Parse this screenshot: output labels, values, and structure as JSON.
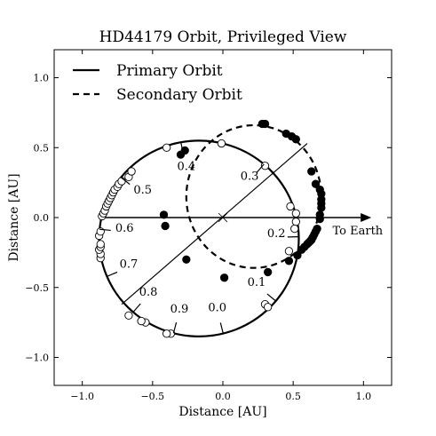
{
  "chart_data": {
    "type": "scatter",
    "title": "HD44179 Orbit, Privileged View",
    "xlabel": "Distance [AU]",
    "ylabel": "Distance [AU]",
    "xlim": [
      -1.2,
      1.2
    ],
    "ylim": [
      -1.2,
      1.2
    ],
    "xticks": [
      -1.0,
      -0.5,
      0.0,
      0.5,
      1.0
    ],
    "yticks": [
      -1.0,
      -0.5,
      0.0,
      0.5,
      1.0
    ],
    "xtick_labels": [
      "−1.0",
      "−0.5",
      "0.0",
      "0.5",
      "1.0"
    ],
    "ytick_labels": [
      "−1.0",
      "−0.5",
      "0.0",
      "0.5",
      "1.0"
    ],
    "grid": false,
    "legend_position": "top-left",
    "legend": [
      {
        "label": "Primary Orbit",
        "style": "solid"
      },
      {
        "label": "Secondary Orbit",
        "style": "dashed"
      }
    ],
    "arrow_label": "To Earth",
    "primary_orbit": {
      "style": "solid",
      "center": [
        -0.17,
        -0.15
      ],
      "radius_x": 0.71,
      "radius_y": 0.7,
      "marker": "open-circle",
      "points": [
        [
          0.48,
          0.08
        ],
        [
          0.52,
          0.03
        ],
        [
          0.52,
          -0.03
        ],
        [
          0.51,
          -0.08
        ],
        [
          0.47,
          -0.24
        ],
        [
          0.3,
          -0.62
        ],
        [
          0.32,
          -0.64
        ],
        [
          -0.37,
          -0.83
        ],
        [
          -0.4,
          -0.83
        ],
        [
          -0.55,
          -0.75
        ],
        [
          -0.58,
          -0.74
        ],
        [
          -0.67,
          -0.7
        ],
        [
          -0.87,
          -0.29
        ],
        [
          -0.87,
          -0.26
        ],
        [
          -0.88,
          -0.23
        ],
        [
          -0.87,
          -0.21
        ],
        [
          -0.87,
          -0.19
        ],
        [
          -0.88,
          -0.13
        ],
        [
          -0.87,
          -0.1
        ],
        [
          -0.86,
          0.01
        ],
        [
          -0.85,
          0.03
        ],
        [
          -0.84,
          0.05
        ],
        [
          -0.83,
          0.08
        ],
        [
          -0.82,
          0.1
        ],
        [
          -0.81,
          0.12
        ],
        [
          -0.8,
          0.14
        ],
        [
          -0.79,
          0.16
        ],
        [
          -0.78,
          0.18
        ],
        [
          -0.77,
          0.2
        ],
        [
          -0.75,
          0.22
        ],
        [
          -0.74,
          0.24
        ],
        [
          -0.72,
          0.26
        ],
        [
          -0.67,
          0.29
        ],
        [
          -0.65,
          0.33
        ],
        [
          -0.4,
          0.5
        ],
        [
          -0.01,
          0.53
        ],
        [
          0.3,
          0.37
        ]
      ]
    },
    "secondary_orbit": {
      "style": "dashed",
      "center": [
        0.22,
        0.15
      ],
      "radius_x": 0.48,
      "radius_y": 0.51,
      "marker": "filled-circle",
      "points": [
        [
          0.28,
          0.67
        ],
        [
          0.3,
          0.67
        ],
        [
          0.45,
          0.6
        ],
        [
          0.49,
          0.58
        ],
        [
          0.52,
          0.56
        ],
        [
          0.63,
          0.33
        ],
        [
          0.66,
          0.24
        ],
        [
          0.69,
          0.2
        ],
        [
          0.7,
          0.17
        ],
        [
          0.7,
          0.13
        ],
        [
          0.7,
          0.1
        ],
        [
          0.7,
          0.07
        ],
        [
          0.69,
          0.02
        ],
        [
          0.69,
          -0.01
        ],
        [
          0.67,
          -0.08
        ],
        [
          0.66,
          -0.1
        ],
        [
          0.65,
          -0.12
        ],
        [
          0.64,
          -0.14
        ],
        [
          0.63,
          -0.16
        ],
        [
          0.62,
          -0.17
        ],
        [
          0.61,
          -0.18
        ],
        [
          0.6,
          -0.19
        ],
        [
          0.58,
          -0.21
        ],
        [
          0.56,
          -0.23
        ],
        [
          0.53,
          -0.27
        ],
        [
          0.47,
          -0.31
        ],
        [
          0.32,
          -0.39
        ],
        [
          0.01,
          -0.43
        ],
        [
          -0.26,
          -0.3
        ],
        [
          -0.42,
          0.02
        ],
        [
          -0.41,
          -0.06
        ],
        [
          -0.3,
          0.45
        ],
        [
          -0.27,
          0.48
        ]
      ]
    },
    "phase_labels": [
      {
        "text": "0.0",
        "x": -0.04,
        "y": -0.67
      },
      {
        "text": "0.1",
        "x": 0.24,
        "y": -0.49
      },
      {
        "text": "0.2",
        "x": 0.38,
        "y": -0.14
      },
      {
        "text": "0.3",
        "x": 0.19,
        "y": 0.27
      },
      {
        "text": "0.4",
        "x": -0.26,
        "y": 0.34
      },
      {
        "text": "0.5",
        "x": -0.57,
        "y": 0.17
      },
      {
        "text": "0.6",
        "x": -0.7,
        "y": -0.1
      },
      {
        "text": "0.7",
        "x": -0.67,
        "y": -0.36
      },
      {
        "text": "0.8",
        "x": -0.53,
        "y": -0.56
      },
      {
        "text": "0.9",
        "x": -0.31,
        "y": -0.68
      }
    ]
  }
}
